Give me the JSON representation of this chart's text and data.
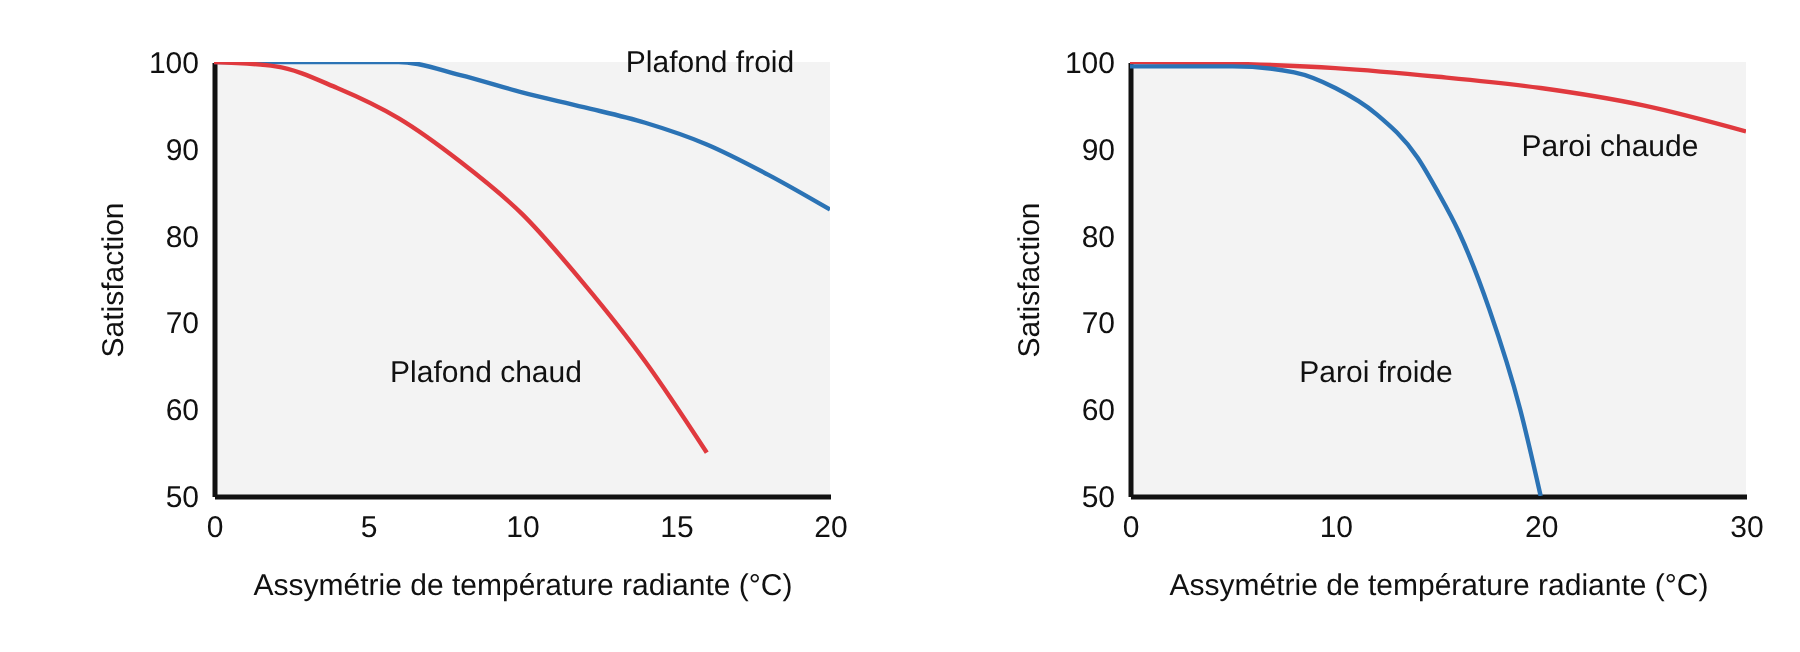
{
  "chart_data": [
    {
      "type": "line",
      "xlabel": "Assymétrie de température radiante (°C)",
      "ylabel": "Satisfaction",
      "xlim": [
        0,
        20
      ],
      "ylim": [
        50,
        100
      ],
      "xticks": [
        0,
        5,
        10,
        15,
        20
      ],
      "yticks": [
        50,
        60,
        70,
        80,
        90,
        100
      ],
      "grid": false,
      "legend": false,
      "marker": "none",
      "line_style": "solid",
      "series": [
        {
          "name": "Plafond froid",
          "color": "#2b73b5",
          "x": [
            0,
            2,
            4,
            6,
            8,
            10,
            12,
            14,
            16,
            18,
            20
          ],
          "values": [
            100,
            100,
            100,
            100,
            98.5,
            96.5,
            94.8,
            93,
            90.5,
            87,
            83
          ]
        },
        {
          "name": "Plafond chaud",
          "color": "#e0393e",
          "x": [
            0,
            2,
            4,
            6,
            8,
            10,
            12,
            14,
            16
          ],
          "values": [
            100,
            99.5,
            97,
            93.5,
            88.5,
            82.5,
            74.5,
            65.5,
            55
          ]
        }
      ]
    },
    {
      "type": "line",
      "xlabel": "Assymétrie de température radiante (°C)",
      "ylabel": "Satisfaction",
      "xlim": [
        0,
        30
      ],
      "ylim": [
        50,
        100
      ],
      "xticks": [
        0,
        10,
        20,
        30
      ],
      "yticks": [
        50,
        60,
        70,
        80,
        90,
        100
      ],
      "grid": false,
      "legend": false,
      "marker": "none",
      "line_style": "solid",
      "series": [
        {
          "name": "Paroi chaude",
          "color": "#e0393e",
          "x": [
            0,
            5,
            10,
            15,
            20,
            25,
            30
          ],
          "values": [
            100,
            99.8,
            99.3,
            98.3,
            97,
            95,
            92
          ]
        },
        {
          "name": "Paroi froide",
          "color": "#2b73b5",
          "x": [
            0,
            5,
            8,
            10,
            12,
            14,
            15,
            16,
            17.5,
            19,
            20
          ],
          "values": [
            99.5,
            99.5,
            98.8,
            97,
            94,
            89,
            85,
            80.5,
            71.5,
            60,
            50
          ]
        }
      ]
    }
  ]
}
